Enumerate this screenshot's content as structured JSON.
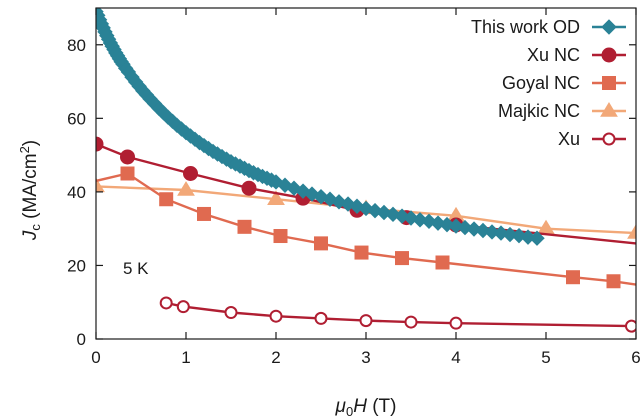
{
  "chart_data": {
    "type": "line",
    "title": "",
    "xlabel_parts": {
      "mu": "μ",
      "mu_sub": "0",
      "H": "H",
      "unit": " (T)"
    },
    "ylabel_parts": {
      "J": "J",
      "J_sub": "c",
      "unit": " (MA/cm",
      "unit_sup": "2",
      "unit_close": ")"
    },
    "xlim": [
      0,
      6
    ],
    "ylim": [
      0,
      90
    ],
    "xticks": [
      0,
      1,
      2,
      3,
      4,
      5,
      6
    ],
    "yticks": [
      0,
      20,
      40,
      60,
      80
    ],
    "annotation": "5 K",
    "legend_position": "top-right",
    "series": [
      {
        "name": "This work OD",
        "color": "#2a8296",
        "marker": "diamond",
        "filled": true,
        "x": [
          0.0,
          0.02,
          0.04,
          0.06,
          0.08,
          0.1,
          0.12,
          0.14,
          0.16,
          0.18,
          0.2,
          0.22,
          0.24,
          0.26,
          0.28,
          0.3,
          0.33,
          0.36,
          0.4,
          0.44,
          0.48,
          0.52,
          0.56,
          0.6,
          0.65,
          0.7,
          0.75,
          0.8,
          0.85,
          0.9,
          0.95,
          1.0,
          1.05,
          1.1,
          1.15,
          1.2,
          1.25,
          1.3,
          1.35,
          1.4,
          1.45,
          1.5,
          1.55,
          1.6,
          1.65,
          1.7,
          1.75,
          1.8,
          1.85,
          1.9,
          1.95,
          2.0,
          2.1,
          2.2,
          2.3,
          2.4,
          2.5,
          2.6,
          2.7,
          2.8,
          2.9,
          3.0,
          3.1,
          3.2,
          3.3,
          3.4,
          3.5,
          3.6,
          3.7,
          3.8,
          3.9,
          4.0,
          4.1,
          4.2,
          4.3,
          4.4,
          4.5,
          4.6,
          4.7,
          4.8,
          4.9
        ],
        "y": [
          89.0,
          88.0,
          86.8,
          85.7,
          84.6,
          83.5,
          82.5,
          81.5,
          80.5,
          79.6,
          78.7,
          77.8,
          77.0,
          76.2,
          75.4,
          74.7,
          73.6,
          72.6,
          71.2,
          69.9,
          68.7,
          67.5,
          66.4,
          65.3,
          64.0,
          62.7,
          61.5,
          60.3,
          59.2,
          58.1,
          57.1,
          56.1,
          55.2,
          54.3,
          53.4,
          52.6,
          51.8,
          51.0,
          50.3,
          49.6,
          48.9,
          48.2,
          47.6,
          47.0,
          46.4,
          45.8,
          45.2,
          44.7,
          44.2,
          43.7,
          43.2,
          42.7,
          41.8,
          41.0,
          40.2,
          39.4,
          38.7,
          38.0,
          37.3,
          36.7,
          36.1,
          35.5,
          34.9,
          34.4,
          33.9,
          33.4,
          32.9,
          32.4,
          32.0,
          31.5,
          31.1,
          30.7,
          30.3,
          29.9,
          29.5,
          29.1,
          28.8,
          28.4,
          28.1,
          27.7,
          27.4
        ]
      },
      {
        "name": "Xu NC",
        "color": "#b01e32",
        "marker": "circle",
        "filled": true,
        "x": [
          0.0,
          0.35,
          1.05,
          1.7,
          2.3,
          2.9,
          3.45,
          4.0,
          6.0
        ],
        "y": [
          53.0,
          49.5,
          45.0,
          41.0,
          38.3,
          35.0,
          33.0,
          31.0,
          26.0
        ],
        "draw_markers_count": 8
      },
      {
        "name": "Goyal NC",
        "color": "#e06a50",
        "marker": "square",
        "filled": true,
        "x": [
          0.0,
          0.35,
          0.78,
          1.2,
          1.65,
          2.05,
          2.5,
          2.95,
          3.4,
          3.85,
          5.3,
          5.75,
          6.0
        ],
        "y": [
          43.0,
          45.0,
          38.0,
          34.0,
          30.5,
          28.0,
          26.0,
          23.5,
          22.0,
          20.8,
          16.8,
          15.7,
          14.8
        ],
        "draw_markers_count": 11,
        "draw_markers_from": 1
      },
      {
        "name": "Majkic NC",
        "color": "#f2a878",
        "marker": "triangle",
        "filled": true,
        "x": [
          0.0,
          1.0,
          2.0,
          3.0,
          4.0,
          5.0,
          6.0
        ],
        "y": [
          41.5,
          40.5,
          38.0,
          35.5,
          33.5,
          30.0,
          28.8
        ]
      },
      {
        "name": "Xu",
        "color": "#b01e32",
        "marker": "circle",
        "filled": false,
        "x": [
          0.78,
          0.97,
          1.5,
          2.0,
          2.5,
          3.0,
          3.5,
          4.0,
          5.95
        ],
        "y": [
          9.8,
          8.8,
          7.2,
          6.2,
          5.6,
          5.0,
          4.6,
          4.3,
          3.5
        ]
      }
    ]
  }
}
